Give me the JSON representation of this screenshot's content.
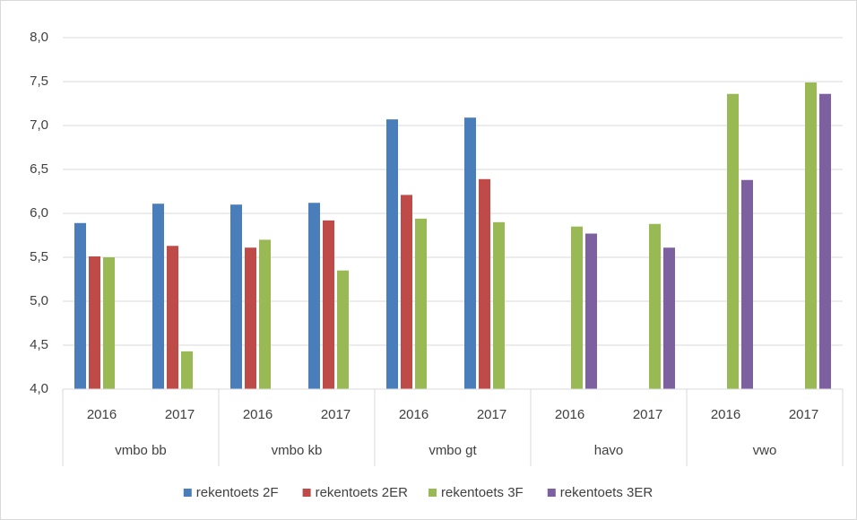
{
  "chart_data": {
    "type": "bar",
    "categories": [
      "2016",
      "2017",
      "2016",
      "2017",
      "2016",
      "2017",
      "2016",
      "2017",
      "2016",
      "2017"
    ],
    "category_groups": [
      "vmbo bb",
      "vmbo kb",
      "vmbo gt",
      "havo",
      "vwo"
    ],
    "series": [
      {
        "name": "rekentoets 2F",
        "color": "#4a7ebb",
        "values": [
          5.89,
          6.11,
          6.1,
          6.12,
          7.07,
          7.09,
          null,
          null,
          null,
          null
        ]
      },
      {
        "name": "rekentoets 2ER",
        "color": "#be4b48",
        "values": [
          5.51,
          5.63,
          5.61,
          5.92,
          6.21,
          6.39,
          null,
          null,
          null,
          null
        ]
      },
      {
        "name": "rekentoets 3F",
        "color": "#98b954",
        "values": [
          5.5,
          4.43,
          5.7,
          5.35,
          5.94,
          5.9,
          5.85,
          5.88,
          7.36,
          7.49
        ]
      },
      {
        "name": "rekentoets 3ER",
        "color": "#7d60a0",
        "values": [
          null,
          null,
          null,
          null,
          null,
          null,
          5.77,
          5.61,
          6.38,
          7.36
        ]
      }
    ],
    "ylim": [
      4,
      8
    ],
    "yticks": [
      {
        "value": 4,
        "label": "4,0"
      },
      {
        "value": 4.5,
        "label": "4,5"
      },
      {
        "value": 5,
        "label": "5,0"
      },
      {
        "value": 5.5,
        "label": "5,5"
      },
      {
        "value": 6,
        "label": "6,0"
      },
      {
        "value": 6.5,
        "label": "6,5"
      },
      {
        "value": 7,
        "label": "7,0"
      },
      {
        "value": 7.5,
        "label": "7,5"
      },
      {
        "value": 8,
        "label": "8,0"
      }
    ],
    "grid": true,
    "legend": "bottom"
  }
}
